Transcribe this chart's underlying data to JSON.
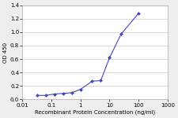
{
  "x": [
    0.0313,
    0.0625,
    0.125,
    0.25,
    0.5,
    1.0,
    2.5,
    5.0,
    10.0,
    25.0,
    100.0
  ],
  "y": [
    0.06,
    0.06,
    0.08,
    0.09,
    0.1,
    0.15,
    0.27,
    0.28,
    0.62,
    0.97,
    1.28
  ],
  "line_color": "#4444bb",
  "marker": "D",
  "marker_size": 2.0,
  "xlabel": "Recombinant Protein Concentration (ng/ml)",
  "ylabel": "OD 450",
  "xlim": [
    0.01,
    1000
  ],
  "ylim": [
    0,
    1.4
  ],
  "yticks": [
    0,
    0.2,
    0.4,
    0.6,
    0.8,
    1.0,
    1.2,
    1.4
  ],
  "xtick_positions": [
    0.01,
    0.1,
    1,
    10,
    100,
    1000
  ],
  "xtick_labels": [
    "0.01",
    "0.1",
    "1",
    "10",
    "100",
    "1000"
  ],
  "plot_bg_color": "#ffffff",
  "fig_bg_color": "#eeeeee",
  "grid_color": "#cccccc",
  "xlabel_fontsize": 5.0,
  "ylabel_fontsize": 5.0,
  "tick_fontsize": 5.0,
  "linewidth": 0.8,
  "spine_color": "#aaaaaa"
}
